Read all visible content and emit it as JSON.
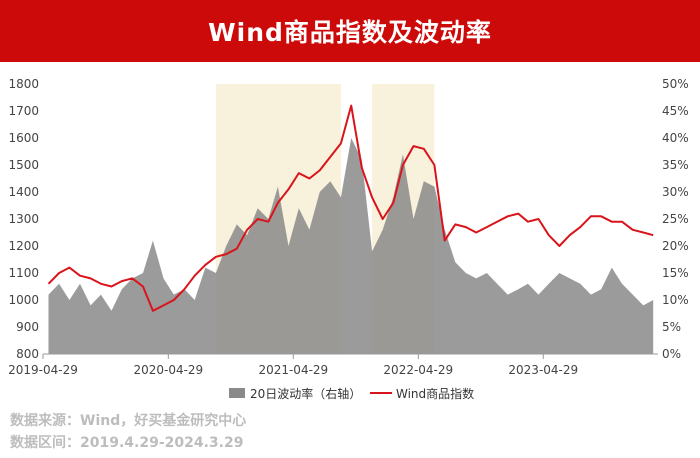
{
  "header": {
    "title": "Wind商品指数及波动率"
  },
  "source": {
    "line1": "数据来源：Wind，好买基金研究中心",
    "line2": "数据区间：2019.4.29-2024.3.29"
  },
  "colors": {
    "header_bg": "#cc0a0a",
    "line": "#d9141b",
    "area": "#8a8a8a",
    "highlight": "#f8f1dc"
  },
  "chart_data": {
    "type": "line",
    "x_ticks": [
      "2019-04-29",
      "2020-04-29",
      "2021-04-29",
      "2022-04-29",
      "2023-04-29"
    ],
    "x_range": [
      "2019-04-29",
      "2024-03-29"
    ],
    "y_left": {
      "min": 800,
      "max": 1800,
      "ticks": [
        "800",
        "900",
        "1000",
        "1100",
        "1200",
        "1300",
        "1400",
        "1500",
        "1600",
        "1700",
        "1800"
      ]
    },
    "y_right": {
      "min": 0,
      "max": 50,
      "ticks": [
        "0%",
        "5%",
        "10%",
        "15%",
        "20%",
        "25%",
        "30%",
        "35%",
        "40%",
        "45%",
        "50%"
      ]
    },
    "highlight_periods": [
      [
        "2020-09",
        "2021-09"
      ],
      [
        "2021-12",
        "2022-06"
      ]
    ],
    "series": [
      {
        "name": "20日波动率（右轴）",
        "kind": "area",
        "axis": "right",
        "points": [
          [
            "2019-05",
            11
          ],
          [
            "2019-06",
            13
          ],
          [
            "2019-07",
            10
          ],
          [
            "2019-08",
            13
          ],
          [
            "2019-09",
            9
          ],
          [
            "2019-10",
            11
          ],
          [
            "2019-11",
            8
          ],
          [
            "2019-12",
            12
          ],
          [
            "2020-01",
            14
          ],
          [
            "2020-02",
            15
          ],
          [
            "2020-03",
            21
          ],
          [
            "2020-04",
            14
          ],
          [
            "2020-05",
            11
          ],
          [
            "2020-06",
            12
          ],
          [
            "2020-07",
            10
          ],
          [
            "2020-08",
            16
          ],
          [
            "2020-09",
            15
          ],
          [
            "2020-10",
            20
          ],
          [
            "2020-11",
            24
          ],
          [
            "2020-12",
            22
          ],
          [
            "2021-01",
            27
          ],
          [
            "2021-02",
            25
          ],
          [
            "2021-03",
            31
          ],
          [
            "2021-04",
            20
          ],
          [
            "2021-05",
            27
          ],
          [
            "2021-06",
            23
          ],
          [
            "2021-07",
            30
          ],
          [
            "2021-08",
            32
          ],
          [
            "2021-09",
            29
          ],
          [
            "2021-10",
            40
          ],
          [
            "2021-11",
            36
          ],
          [
            "2021-12",
            19
          ],
          [
            "2022-01",
            23
          ],
          [
            "2022-02",
            29
          ],
          [
            "2022-03",
            37
          ],
          [
            "2022-04",
            25
          ],
          [
            "2022-05",
            32
          ],
          [
            "2022-06",
            31
          ],
          [
            "2022-07",
            23
          ],
          [
            "2022-08",
            17
          ],
          [
            "2022-09",
            15
          ],
          [
            "2022-10",
            14
          ],
          [
            "2022-11",
            15
          ],
          [
            "2022-12",
            13
          ],
          [
            "2023-01",
            11
          ],
          [
            "2023-02",
            12
          ],
          [
            "2023-03",
            13
          ],
          [
            "2023-04",
            11
          ],
          [
            "2023-05",
            13
          ],
          [
            "2023-06",
            15
          ],
          [
            "2023-07",
            14
          ],
          [
            "2023-08",
            13
          ],
          [
            "2023-09",
            11
          ],
          [
            "2023-10",
            12
          ],
          [
            "2023-11",
            16
          ],
          [
            "2023-12",
            13
          ],
          [
            "2024-01",
            11
          ],
          [
            "2024-02",
            9
          ],
          [
            "2024-03",
            10
          ]
        ]
      },
      {
        "name": "Wind商品指数",
        "kind": "line",
        "axis": "left",
        "points": [
          [
            "2019-05",
            1060
          ],
          [
            "2019-06",
            1100
          ],
          [
            "2019-07",
            1120
          ],
          [
            "2019-08",
            1090
          ],
          [
            "2019-09",
            1080
          ],
          [
            "2019-10",
            1060
          ],
          [
            "2019-11",
            1050
          ],
          [
            "2019-12",
            1070
          ],
          [
            "2020-01",
            1080
          ],
          [
            "2020-02",
            1050
          ],
          [
            "2020-03",
            960
          ],
          [
            "2020-04",
            980
          ],
          [
            "2020-05",
            1000
          ],
          [
            "2020-06",
            1040
          ],
          [
            "2020-07",
            1090
          ],
          [
            "2020-08",
            1130
          ],
          [
            "2020-09",
            1160
          ],
          [
            "2020-10",
            1170
          ],
          [
            "2020-11",
            1190
          ],
          [
            "2020-12",
            1260
          ],
          [
            "2021-01",
            1300
          ],
          [
            "2021-02",
            1290
          ],
          [
            "2021-03",
            1360
          ],
          [
            "2021-04",
            1410
          ],
          [
            "2021-05",
            1470
          ],
          [
            "2021-06",
            1450
          ],
          [
            "2021-07",
            1480
          ],
          [
            "2021-08",
            1530
          ],
          [
            "2021-09",
            1580
          ],
          [
            "2021-10",
            1720
          ],
          [
            "2021-11",
            1490
          ],
          [
            "2021-12",
            1380
          ],
          [
            "2022-01",
            1300
          ],
          [
            "2022-02",
            1360
          ],
          [
            "2022-03",
            1500
          ],
          [
            "2022-04",
            1570
          ],
          [
            "2022-05",
            1560
          ],
          [
            "2022-06",
            1500
          ],
          [
            "2022-07",
            1220
          ],
          [
            "2022-08",
            1280
          ],
          [
            "2022-09",
            1270
          ],
          [
            "2022-10",
            1250
          ],
          [
            "2022-11",
            1270
          ],
          [
            "2022-12",
            1290
          ],
          [
            "2023-01",
            1310
          ],
          [
            "2023-02",
            1320
          ],
          [
            "2023-03",
            1290
          ],
          [
            "2023-04",
            1300
          ],
          [
            "2023-05",
            1240
          ],
          [
            "2023-06",
            1200
          ],
          [
            "2023-07",
            1240
          ],
          [
            "2023-08",
            1270
          ],
          [
            "2023-09",
            1310
          ],
          [
            "2023-10",
            1310
          ],
          [
            "2023-11",
            1290
          ],
          [
            "2023-12",
            1290
          ],
          [
            "2024-01",
            1260
          ],
          [
            "2024-02",
            1250
          ],
          [
            "2024-03",
            1240
          ]
        ]
      }
    ]
  }
}
